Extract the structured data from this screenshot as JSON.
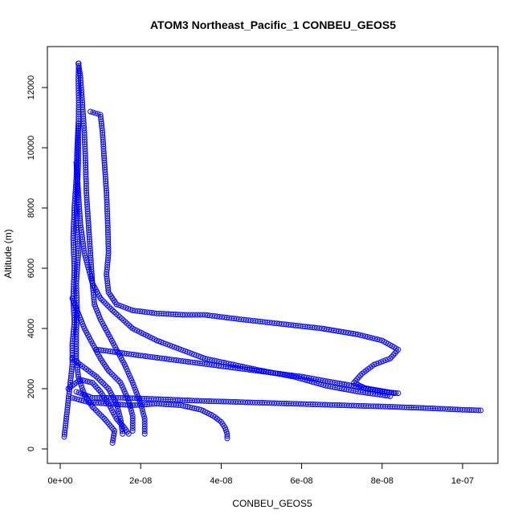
{
  "chart_data": {
    "type": "scatter",
    "title": "ATOM3 Northeast_Pacific_1 CONBEU_GEOS5",
    "xlabel": "CONBEU_GEOS5",
    "ylabel": "Altitude (m)",
    "xlim": [
      0,
      1.05e-07
    ],
    "ylim": [
      0,
      12900
    ],
    "x_ticks": [
      0,
      2e-08,
      4e-08,
      6e-08,
      8e-08,
      1e-07
    ],
    "x_tick_labels": [
      "0e+00",
      "2e-08",
      "4e-08",
      "6e-08",
      "8e-08",
      "1e-07"
    ],
    "y_ticks": [
      0,
      2000,
      4000,
      6000,
      8000,
      10000,
      12000
    ],
    "y_tick_labels": [
      "0",
      "2000",
      "4000",
      "6000",
      "8000",
      "10000",
      "12000"
    ],
    "grid": false,
    "legend": "none",
    "marker": "open-circle",
    "connect_points": true,
    "color": "#0000ff",
    "series": [
      {
        "points": [
          [
            1.3e-08,
            200
          ],
          [
            1.35e-08,
            600
          ],
          [
            1.1e-08,
            1000
          ],
          [
            8e-09,
            1400
          ],
          [
            6e-09,
            1800
          ],
          [
            4.5e-09,
            2400
          ],
          [
            4e-09,
            3000
          ],
          [
            4e-09,
            3800
          ],
          [
            4.2e-09,
            4600
          ],
          [
            4e-09,
            5500
          ],
          [
            4.5e-09,
            6500
          ],
          [
            4e-09,
            7500
          ],
          [
            4.2e-09,
            8500
          ],
          [
            4.5e-09,
            9500
          ],
          [
            4.5e-09,
            10500
          ],
          [
            4.6e-09,
            11500
          ],
          [
            4.5e-09,
            12300
          ],
          [
            4.6e-09,
            12800
          ]
        ]
      },
      {
        "points": [
          [
            4.5e-09,
            12800
          ],
          [
            5e-09,
            12400
          ],
          [
            5.5e-09,
            11500
          ],
          [
            6e-09,
            10500
          ],
          [
            6.3e-09,
            9500
          ],
          [
            6.5e-09,
            8500
          ],
          [
            7e-09,
            7500
          ],
          [
            7.5e-09,
            6500
          ],
          [
            8e-09,
            5500
          ],
          [
            8.5e-09,
            4800
          ],
          [
            1e-08,
            4300
          ],
          [
            1.2e-08,
            3800
          ],
          [
            1.4e-08,
            3300
          ],
          [
            1.6e-08,
            2800
          ],
          [
            1.8e-08,
            2200
          ],
          [
            2e-08,
            1500
          ],
          [
            2.1e-08,
            1000
          ],
          [
            2.1e-08,
            500
          ]
        ]
      },
      {
        "points": [
          [
            7.5e-09,
            11200
          ],
          [
            1e-08,
            11100
          ],
          [
            1.05e-08,
            10500
          ],
          [
            1.1e-08,
            9500
          ],
          [
            1.15e-08,
            8500
          ],
          [
            1.18e-08,
            7500
          ],
          [
            1.2e-08,
            6500
          ],
          [
            1.15e-08,
            5800
          ],
          [
            1.2e-08,
            5200
          ],
          [
            1.4e-08,
            4800
          ],
          [
            1.8e-08,
            4600
          ],
          [
            2.4e-08,
            4500
          ],
          [
            3.1e-08,
            4450
          ],
          [
            3.6e-08,
            4450
          ],
          [
            4.5e-08,
            4300
          ],
          [
            5.5e-08,
            4150
          ],
          [
            6.5e-08,
            4000
          ],
          [
            7.4e-08,
            3800
          ],
          [
            8e-08,
            3600
          ],
          [
            8.4e-08,
            3300
          ],
          [
            8.2e-08,
            3000
          ],
          [
            7.8e-08,
            2800
          ],
          [
            7.5e-08,
            2500
          ],
          [
            7.3e-08,
            2200
          ],
          [
            7.6e-08,
            2000
          ],
          [
            8e-08,
            1900
          ],
          [
            8.4e-08,
            1850
          ]
        ]
      },
      {
        "points": [
          [
            4e-09,
            9500
          ],
          [
            4.5e-09,
            8500
          ],
          [
            5e-09,
            7500
          ],
          [
            6e-09,
            6500
          ],
          [
            8e-09,
            5500
          ],
          [
            1e-08,
            5000
          ],
          [
            1.3e-08,
            4600
          ],
          [
            1.8e-08,
            4000
          ],
          [
            2.4e-08,
            3600
          ],
          [
            3e-08,
            3300
          ],
          [
            3.6e-08,
            3000
          ],
          [
            4.3e-08,
            2800
          ],
          [
            5e-08,
            2600
          ],
          [
            5.8e-08,
            2400
          ],
          [
            6.6e-08,
            2100
          ],
          [
            7.4e-08,
            1900
          ],
          [
            8.2e-08,
            1750
          ]
        ]
      },
      {
        "points": [
          [
            4e-09,
            1900
          ],
          [
            8e-09,
            1700
          ],
          [
            1.5e-08,
            1700
          ],
          [
            2.5e-08,
            1650
          ],
          [
            3.4e-08,
            1600
          ],
          [
            4.6e-08,
            1550
          ],
          [
            5.8e-08,
            1500
          ],
          [
            7e-08,
            1450
          ],
          [
            8.2e-08,
            1400
          ],
          [
            9.2e-08,
            1350
          ],
          [
            1e-07,
            1300
          ],
          [
            1.045e-07,
            1280
          ]
        ]
      },
      {
        "points": [
          [
            3e-09,
            1700
          ],
          [
            7e-09,
            1550
          ],
          [
            1.2e-08,
            1500
          ],
          [
            1.8e-08,
            1450
          ],
          [
            2.4e-08,
            1500
          ],
          [
            3e-08,
            1450
          ],
          [
            3.5e-08,
            1300
          ],
          [
            3.8e-08,
            1100
          ],
          [
            4e-08,
            900
          ],
          [
            4.1e-08,
            700
          ],
          [
            4.15e-08,
            500
          ],
          [
            4.15e-08,
            350
          ]
        ]
      },
      {
        "points": [
          [
            9e-09,
            3300
          ],
          [
            2e-08,
            3100
          ],
          [
            4e-08,
            2750
          ],
          [
            6e-08,
            2400
          ],
          [
            8.3e-08,
            1850
          ]
        ]
      },
      {
        "points": [
          [
            1e-09,
            400
          ],
          [
            1.5e-09,
            1000
          ],
          [
            2e-09,
            1600
          ],
          [
            2.5e-09,
            2200
          ],
          [
            3e-09,
            2800
          ],
          [
            3e-09,
            3500
          ],
          [
            3.5e-09,
            4200
          ],
          [
            3.2e-09,
            5000
          ],
          [
            3.5e-09,
            6000
          ],
          [
            3.2e-09,
            7000
          ],
          [
            3.5e-09,
            8000
          ],
          [
            4e-09,
            9000
          ],
          [
            4.2e-09,
            10000
          ],
          [
            4.5e-09,
            10800
          ]
        ]
      },
      {
        "points": [
          [
            2e-09,
            2000
          ],
          [
            5e-09,
            2300
          ],
          [
            8e-09,
            2200
          ],
          [
            1e-08,
            1900
          ],
          [
            1.2e-08,
            1500
          ],
          [
            1.4e-08,
            1000
          ],
          [
            1.6e-08,
            700
          ],
          [
            1.7e-08,
            500
          ]
        ]
      },
      {
        "points": [
          [
            3e-09,
            3000
          ],
          [
            6e-09,
            2700
          ],
          [
            9e-09,
            2400
          ],
          [
            1.2e-08,
            2000
          ],
          [
            1.4e-08,
            1500
          ],
          [
            1.5e-08,
            1000
          ],
          [
            1.55e-08,
            500
          ]
        ]
      },
      {
        "points": [
          [
            3e-09,
            5000
          ],
          [
            4.5e-09,
            4500
          ],
          [
            6e-09,
            4000
          ],
          [
            8e-09,
            3500
          ],
          [
            1e-08,
            3000
          ],
          [
            1.2e-08,
            2600
          ],
          [
            1.5e-08,
            2200
          ],
          [
            1.7e-08,
            1600
          ],
          [
            1.8e-08,
            1100
          ],
          [
            1.8e-08,
            600
          ]
        ]
      }
    ]
  }
}
